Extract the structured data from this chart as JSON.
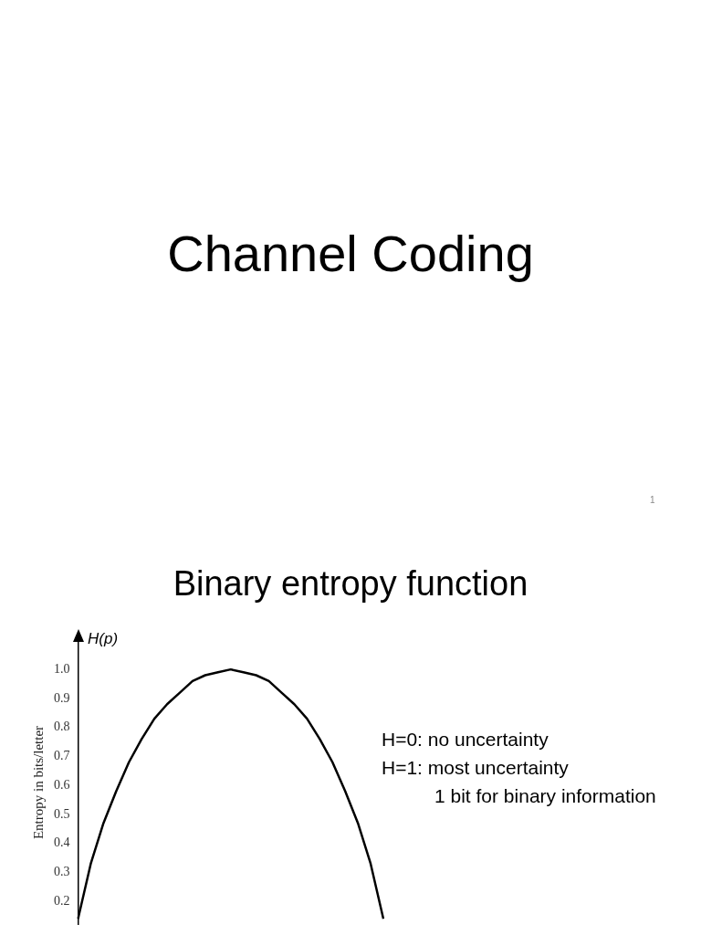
{
  "chart_data": {
    "type": "line",
    "title": "Binary entropy function",
    "ylabel": "Entropy in bits/letter",
    "annotations": [
      "Channel Coding",
      "1",
      "H(p)",
      "H=0: no uncertainty",
      "H=1: most uncertainty",
      "1 bit for binary information"
    ],
    "categories": [
      null,
      null,
      null,
      null,
      null,
      null,
      null,
      null,
      null,
      null,
      null,
      null,
      null,
      null,
      null,
      null,
      null,
      null,
      null,
      null,
      null,
      null,
      null,
      null,
      null
    ],
    "series": [
      {
        "color": "#000000",
        "values": [
          0.14,
          0.33,
          0.47,
          0.58,
          0.68,
          0.76,
          0.83,
          0.88,
          0.92,
          0.96,
          0.98,
          0.99,
          1.0,
          0.99,
          0.98,
          0.96,
          0.92,
          0.88,
          0.83,
          0.76,
          0.68,
          0.58,
          0.47,
          0.33,
          0.14
        ]
      }
    ],
    "ylim": [
      0.12,
      1.1
    ],
    "yticks": [
      0.2,
      0.3,
      0.4,
      0.5,
      0.6,
      0.7,
      0.8,
      0.9,
      {
        "value": 1.0,
        "label": "1.0"
      }
    ],
    "tick_labels": "y",
    "grid": false,
    "legend": false,
    "marker": "none",
    "line_style": "solid"
  }
}
